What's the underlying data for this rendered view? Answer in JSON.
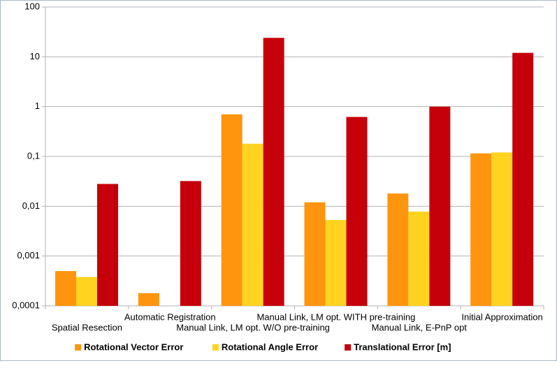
{
  "chart_data": {
    "type": "bar",
    "categories": [
      "Spatial Resection",
      "Automatic Registration",
      "Manual Link, LM opt. W/O pre-training",
      "Manual Link, LM opt. WITH pre-training",
      "Manual Link, E-PnP opt",
      "Initial Approximation"
    ],
    "series": [
      {
        "name": "Rotational Vector Error",
        "color": "#ff950e",
        "values": [
          0.0005,
          0.00018,
          0.7,
          0.012,
          0.018,
          0.115
        ]
      },
      {
        "name": "Rotational Angle Error",
        "color": "#ffd320",
        "values": [
          0.00038,
          null,
          0.18,
          0.0053,
          0.0078,
          0.12
        ]
      },
      {
        "name": "Translational Error [m]",
        "color": "#c5000b",
        "values": [
          0.028,
          0.032,
          24,
          0.62,
          1.0,
          12
        ]
      }
    ],
    "log_scale": true,
    "ylim": [
      0.0001,
      100
    ],
    "yticks": [
      {
        "value": 0.0001,
        "label": "0,0001"
      },
      {
        "value": 0.001,
        "label": "0,001"
      },
      {
        "value": 0.01,
        "label": "0,01"
      },
      {
        "value": 0.1,
        "label": "0,1"
      },
      1,
      10,
      100
    ],
    "grid": true,
    "legend": "bottom"
  }
}
